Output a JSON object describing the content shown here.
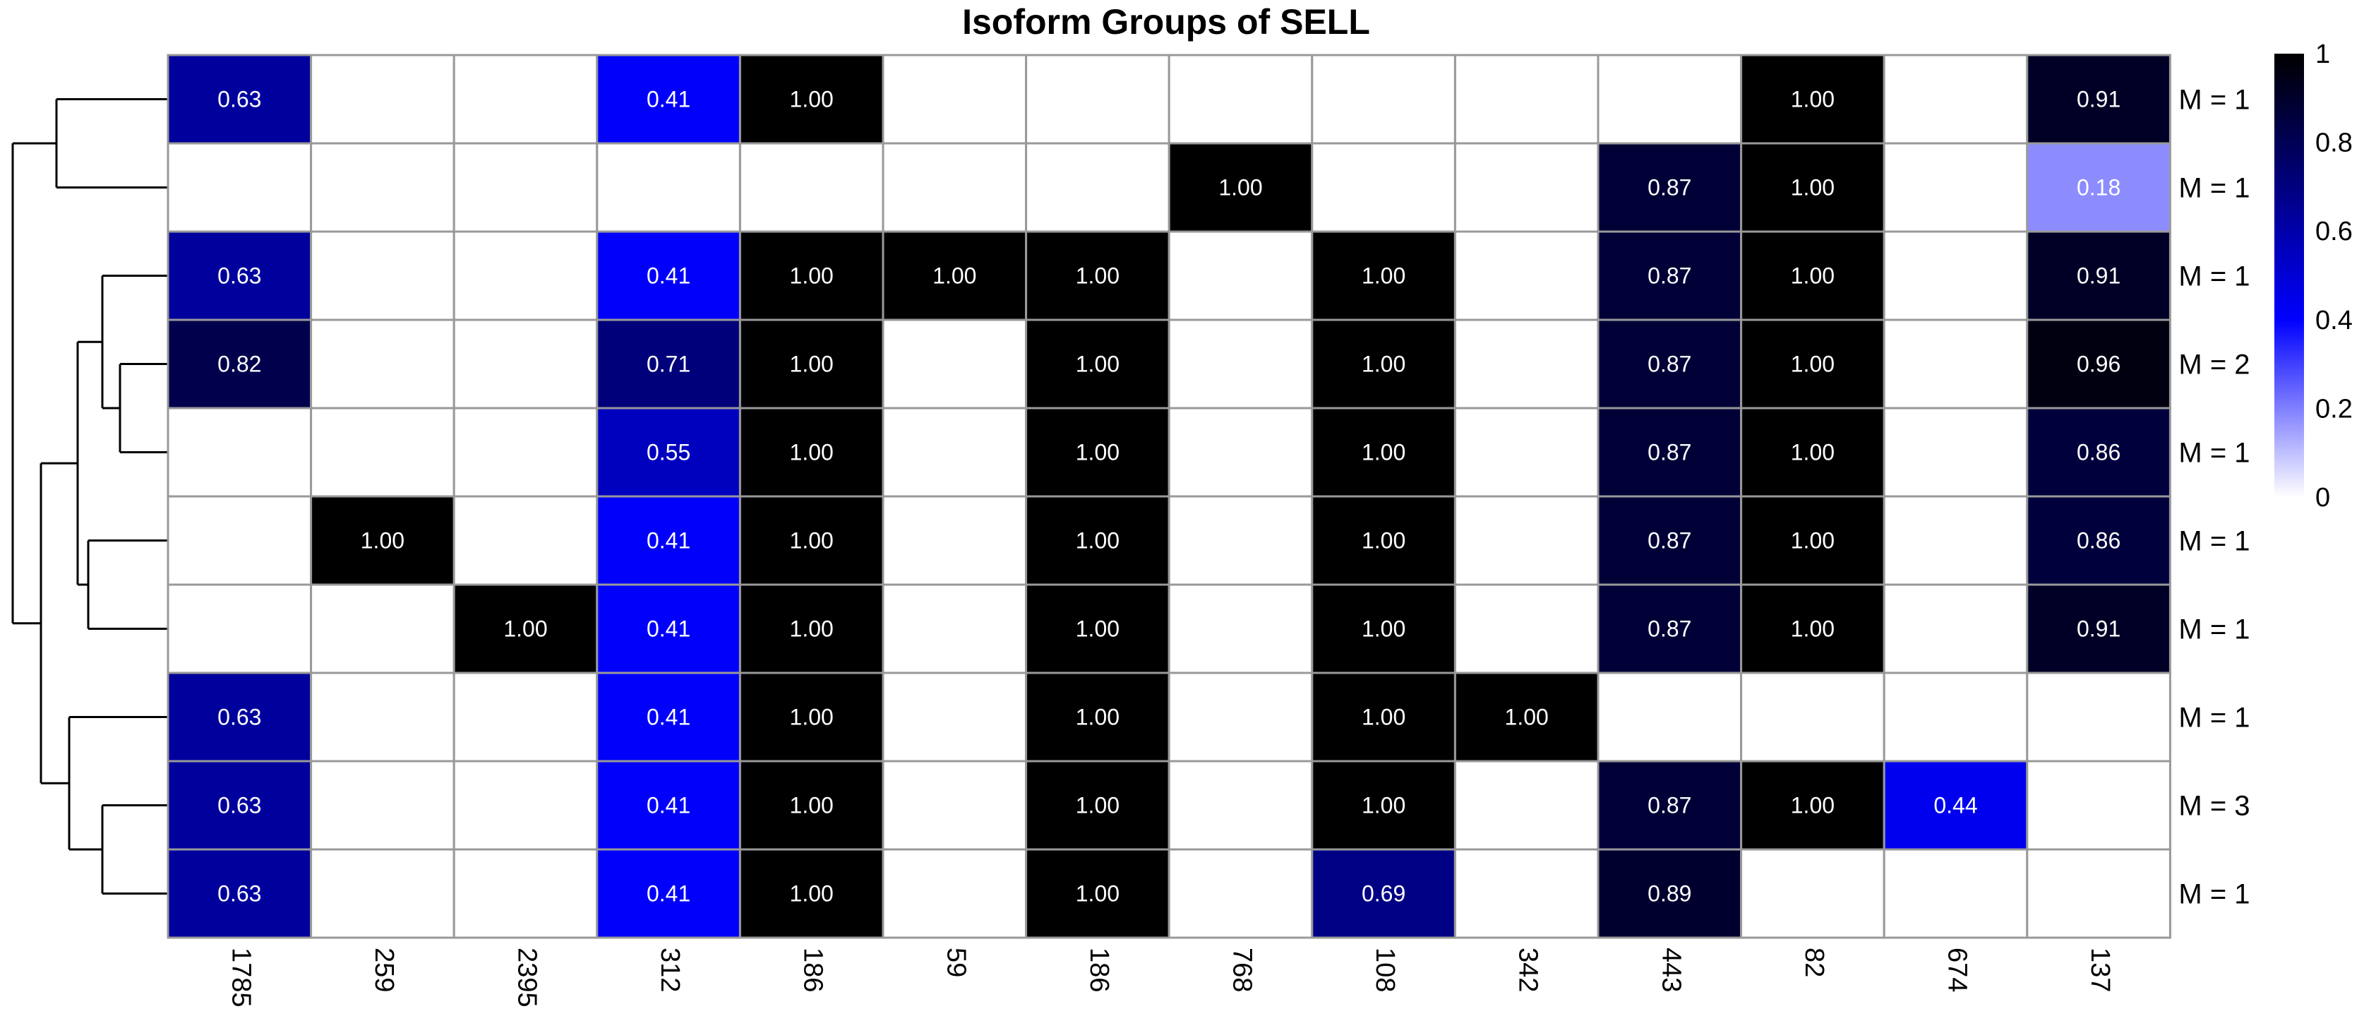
{
  "chart_data": {
    "type": "heatmap",
    "title": "Isoform Groups of SELL",
    "columns": [
      "1785",
      "259",
      "2395",
      "312",
      "186",
      "59",
      "186",
      "768",
      "108",
      "342",
      "443",
      "82",
      "674",
      "137"
    ],
    "row_labels": [
      "M = 1",
      "M = 1",
      "M = 1",
      "M = 2",
      "M = 1",
      "M = 1",
      "M = 1",
      "M = 1",
      "M = 3",
      "M = 1"
    ],
    "values": [
      [
        0.63,
        null,
        null,
        0.41,
        1.0,
        null,
        null,
        null,
        null,
        null,
        null,
        1.0,
        null,
        0.91
      ],
      [
        null,
        null,
        null,
        null,
        null,
        null,
        null,
        1.0,
        null,
        null,
        0.87,
        1.0,
        null,
        0.18
      ],
      [
        0.63,
        null,
        null,
        0.41,
        1.0,
        1.0,
        1.0,
        null,
        1.0,
        null,
        0.87,
        1.0,
        null,
        0.91
      ],
      [
        0.82,
        null,
        null,
        0.71,
        1.0,
        null,
        1.0,
        null,
        1.0,
        null,
        0.87,
        1.0,
        null,
        0.96
      ],
      [
        null,
        null,
        null,
        0.55,
        1.0,
        null,
        1.0,
        null,
        1.0,
        null,
        0.87,
        1.0,
        null,
        0.86
      ],
      [
        null,
        1.0,
        null,
        0.41,
        1.0,
        null,
        1.0,
        null,
        1.0,
        null,
        0.87,
        1.0,
        null,
        0.86
      ],
      [
        null,
        null,
        1.0,
        0.41,
        1.0,
        null,
        1.0,
        null,
        1.0,
        null,
        0.87,
        1.0,
        null,
        0.91
      ],
      [
        0.63,
        null,
        null,
        0.41,
        1.0,
        null,
        1.0,
        null,
        1.0,
        1.0,
        null,
        null,
        null,
        null
      ],
      [
        0.63,
        null,
        null,
        0.41,
        1.0,
        null,
        1.0,
        null,
        1.0,
        null,
        0.87,
        1.0,
        0.44,
        null
      ],
      [
        0.63,
        null,
        null,
        0.41,
        1.0,
        null,
        1.0,
        null,
        0.69,
        null,
        0.89,
        null,
        null,
        null
      ]
    ],
    "value_range": [
      0,
      1
    ],
    "colorscale": [
      {
        "value": 0,
        "color": "#ffffff"
      },
      {
        "value": 0.4,
        "color": "#0000ff"
      },
      {
        "value": 1,
        "color": "#000000"
      }
    ],
    "legend": {
      "position": "top-right",
      "ticks": [
        "1",
        "0.8",
        "0.6",
        "0.4",
        "0.2",
        "0"
      ]
    },
    "row_dendrogram": true,
    "grid_color": "#999999"
  }
}
